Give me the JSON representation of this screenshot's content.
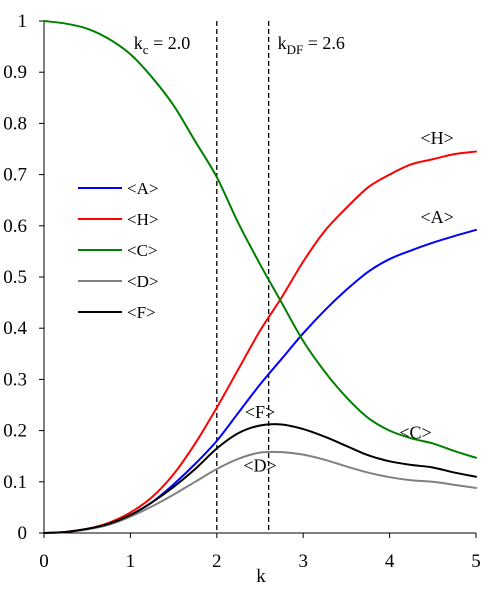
{
  "chart_data": {
    "type": "line",
    "xlabel": "k",
    "ylabel": "",
    "xlim": [
      0,
      5
    ],
    "ylim": [
      0,
      1
    ],
    "xticks": [
      0,
      1,
      2,
      3,
      4,
      5
    ],
    "yticks": [
      0,
      0.1,
      0.2,
      0.3,
      0.4,
      0.5,
      0.6,
      0.7,
      0.8,
      0.9,
      1
    ],
    "grid": false,
    "legend_position": "left",
    "vertical_lines": [
      {
        "x": 2.0,
        "label_main": "k",
        "label_sub": "c",
        "label_rest": " = 2.0"
      },
      {
        "x": 2.6,
        "label_main": "k",
        "label_sub": "DF",
        "label_rest": " = 2.6"
      }
    ],
    "x": [
      0,
      0.25,
      0.5,
      0.75,
      1.0,
      1.25,
      1.5,
      1.75,
      2.0,
      2.25,
      2.5,
      2.75,
      3.0,
      3.25,
      3.5,
      3.75,
      4.0,
      4.25,
      4.5,
      4.75,
      5.0
    ],
    "series": [
      {
        "name": "<A>",
        "color": "#0000ff",
        "values": [
          0,
          0.002,
          0.008,
          0.018,
          0.035,
          0.06,
          0.095,
          0.135,
          0.18,
          0.235,
          0.29,
          0.34,
          0.39,
          0.435,
          0.475,
          0.51,
          0.535,
          0.552,
          0.567,
          0.58,
          0.592
        ]
      },
      {
        "name": "<H>",
        "color": "#ff0000",
        "values": [
          0,
          0.002,
          0.008,
          0.02,
          0.04,
          0.07,
          0.115,
          0.175,
          0.245,
          0.32,
          0.395,
          0.46,
          0.53,
          0.59,
          0.635,
          0.675,
          0.7,
          0.72,
          0.73,
          0.74,
          0.745
        ]
      },
      {
        "name": "<C>",
        "color": "#008000",
        "values": [
          1.0,
          0.995,
          0.985,
          0.965,
          0.935,
          0.89,
          0.835,
          0.765,
          0.695,
          0.605,
          0.525,
          0.45,
          0.375,
          0.315,
          0.265,
          0.225,
          0.2,
          0.185,
          0.175,
          0.16,
          0.147
        ]
      },
      {
        "name": "<D>",
        "color": "#808080",
        "values": [
          0,
          0.002,
          0.007,
          0.016,
          0.032,
          0.052,
          0.075,
          0.1,
          0.125,
          0.145,
          0.157,
          0.158,
          0.153,
          0.143,
          0.13,
          0.118,
          0.109,
          0.103,
          0.1,
          0.094,
          0.088
        ]
      },
      {
        "name": "<F>",
        "color": "#000000",
        "values": [
          0,
          0.002,
          0.008,
          0.018,
          0.035,
          0.06,
          0.09,
          0.125,
          0.165,
          0.195,
          0.21,
          0.212,
          0.203,
          0.188,
          0.17,
          0.152,
          0.14,
          0.133,
          0.128,
          0.118,
          0.11
        ]
      }
    ],
    "annotations": [
      {
        "text": "<H>",
        "x": 4.55,
        "y": 0.76
      },
      {
        "text": "<A>",
        "x": 4.55,
        "y": 0.605
      },
      {
        "text": "<F>",
        "x": 2.5,
        "y": 0.225
      },
      {
        "text": "<D>",
        "x": 2.5,
        "y": 0.12
      },
      {
        "text": "<C>",
        "x": 4.3,
        "y": 0.185
      }
    ]
  }
}
